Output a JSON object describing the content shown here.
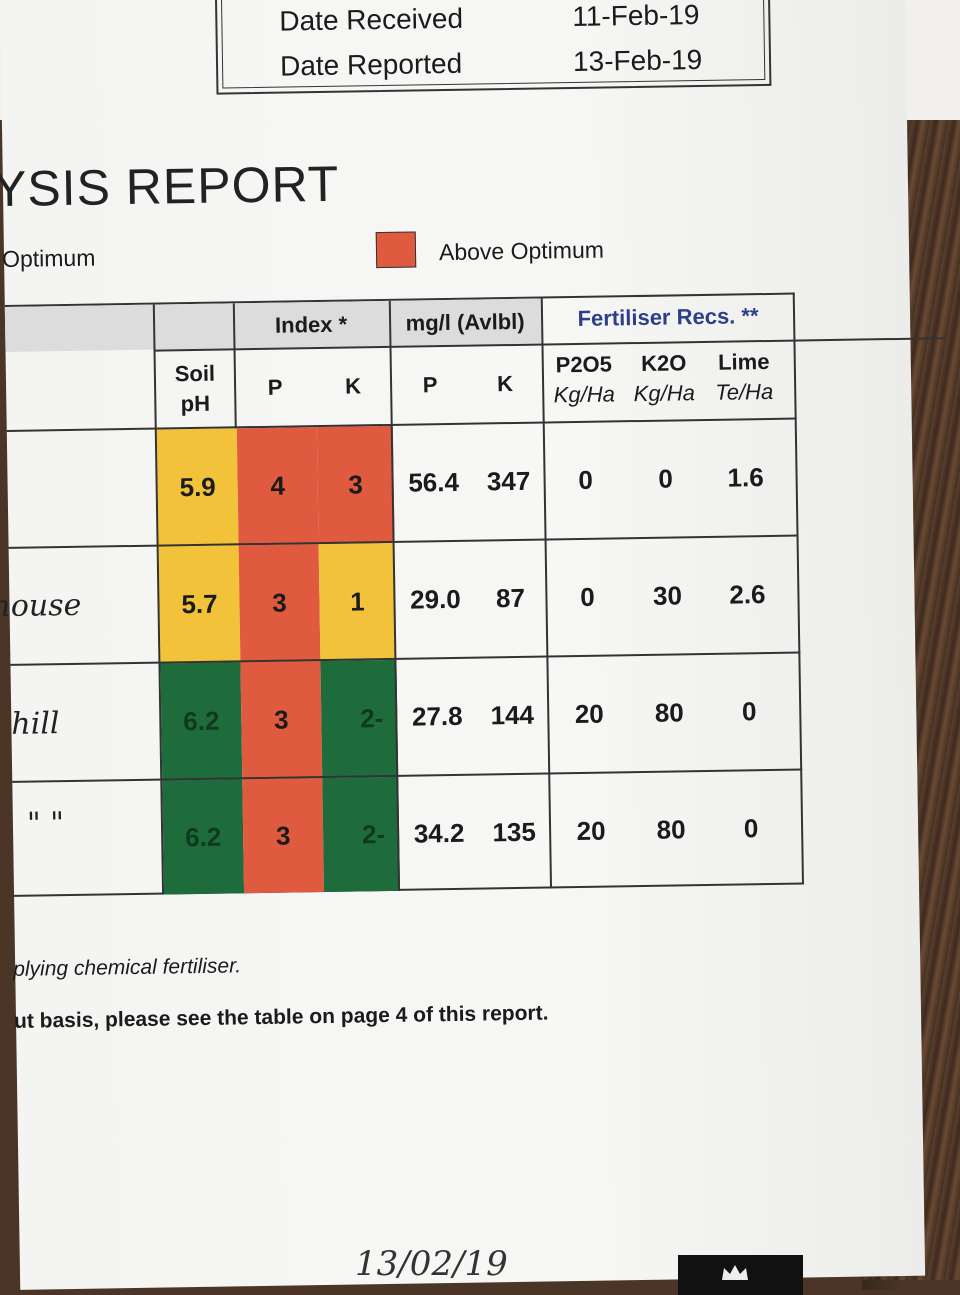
{
  "dates": {
    "received_label": "Date Received",
    "received_value": "11-Feb-19",
    "reported_label": "Date Reported",
    "reported_value": "13-Feb-19"
  },
  "report_title": "YSIS REPORT",
  "legend": {
    "optimum_label": "Optimum",
    "above_label": "Above Optimum",
    "above_color": "#e05a40"
  },
  "table": {
    "group_headers": {
      "index": "Index *",
      "avlbl": "mg/l (Avlbl)",
      "fert_recs": "Fertiliser Recs. **"
    },
    "col_headers": {
      "soil_ph_1": "Soil",
      "soil_ph_2": "pH",
      "index_p": "P",
      "index_k": "K",
      "mg_p": "P",
      "mg_k": "K",
      "p2o5": "P2O5",
      "p2o5_unit": "Kg/Ha",
      "k2o": "K2O",
      "k2o_unit": "Kg/Ha",
      "lime": "Lime",
      "lime_unit": "Te/Ha"
    },
    "rows": [
      {
        "handwritten": "",
        "ph": "5.9",
        "index_p": "4",
        "index_k": "3",
        "mg_p": "56.4",
        "mg_k": "347",
        "p2o5": "0",
        "k2o": "0",
        "lime": "1.6"
      },
      {
        "handwritten": "house",
        "ph": "5.7",
        "index_p": "3",
        "index_k": "1",
        "mg_p": "29.0",
        "mg_k": "87",
        "p2o5": "0",
        "k2o": "30",
        "lime": "2.6"
      },
      {
        "handwritten": "hill",
        "ph": "6.2",
        "index_p": "3",
        "index_k": "2-",
        "mg_p": "27.8",
        "mg_k": "144",
        "p2o5": "20",
        "k2o": "80",
        "lime": "0"
      },
      {
        "handwritten": "\" \"",
        "ph": "6.2",
        "index_p": "3",
        "index_k": "2-",
        "mg_p": "34.2",
        "mg_k": "135",
        "p2o5": "20",
        "k2o": "80",
        "lime": "0"
      }
    ],
    "colors": {
      "yellow": "#f2c33a",
      "red": "#e05a40",
      "green": "#1e6b3c"
    }
  },
  "footnotes": {
    "line1": "plying chemical fertiliser.",
    "line2": "ut basis, please see the table on page 4 of this report."
  },
  "footer_date": "13/02/19",
  "icons": [
    "crown-icon"
  ]
}
